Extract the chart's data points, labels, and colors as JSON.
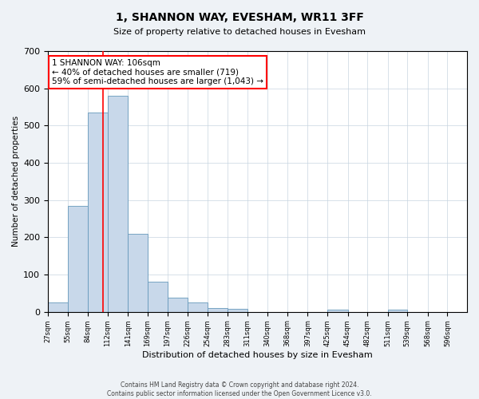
{
  "title": "1, SHANNON WAY, EVESHAM, WR11 3FF",
  "subtitle": "Size of property relative to detached houses in Evesham",
  "xlabel": "Distribution of detached houses by size in Evesham",
  "ylabel": "Number of detached properties",
  "bin_labels": [
    "27sqm",
    "55sqm",
    "84sqm",
    "112sqm",
    "141sqm",
    "169sqm",
    "197sqm",
    "226sqm",
    "254sqm",
    "283sqm",
    "311sqm",
    "340sqm",
    "368sqm",
    "397sqm",
    "425sqm",
    "454sqm",
    "482sqm",
    "511sqm",
    "539sqm",
    "568sqm",
    "596sqm"
  ],
  "bar_heights": [
    25,
    285,
    535,
    580,
    210,
    80,
    37,
    25,
    10,
    8,
    0,
    0,
    0,
    0,
    5,
    0,
    0,
    5,
    0,
    0,
    0
  ],
  "bar_color": "#c8d8ea",
  "bar_edge_color": "#6699bb",
  "property_line_x": 106,
  "bin_edges": [
    27,
    55,
    84,
    112,
    141,
    169,
    197,
    226,
    254,
    283,
    311,
    340,
    368,
    397,
    425,
    454,
    482,
    511,
    539,
    568,
    596,
    624
  ],
  "ylim": [
    0,
    700
  ],
  "yticks": [
    0,
    100,
    200,
    300,
    400,
    500,
    600,
    700
  ],
  "annotation_line1": "1 SHANNON WAY: 106sqm",
  "annotation_line2": "← 40% of detached houses are smaller (719)",
  "annotation_line3": "59% of semi-detached houses are larger (1,043) →",
  "footer_line1": "Contains HM Land Registry data © Crown copyright and database right 2024.",
  "footer_line2": "Contains public sector information licensed under the Open Government Licence v3.0.",
  "grid_color": "#c8d4e0",
  "bg_color": "#eef2f6",
  "plot_bg_color": "#ffffff"
}
